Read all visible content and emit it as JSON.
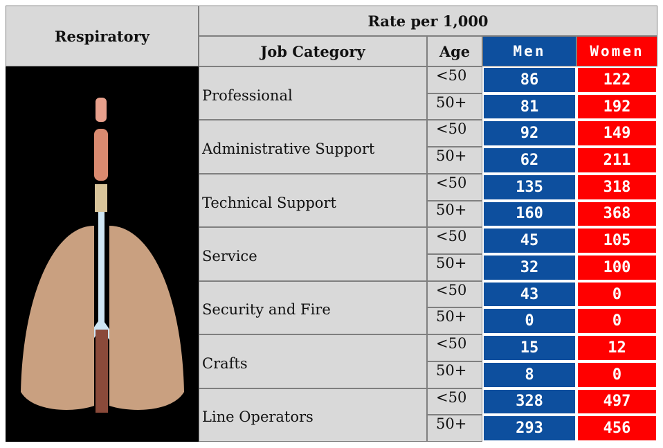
{
  "header": {
    "title": "Respiratory",
    "group": "Rate per 1,000",
    "columns": [
      "Job Category",
      "Age",
      "Men",
      "Women"
    ]
  },
  "table": {
    "rows": [
      {
        "category": "Professional",
        "ages": [
          {
            "age": "<50",
            "men": 86,
            "women": 122
          },
          {
            "age": "50+",
            "men": 81,
            "women": 192
          }
        ]
      },
      {
        "category": "Administrative Support",
        "ages": [
          {
            "age": "<50",
            "men": 92,
            "women": 149
          },
          {
            "age": "50+",
            "men": 62,
            "women": 211
          }
        ]
      },
      {
        "category": "Technical Support",
        "ages": [
          {
            "age": "<50",
            "men": 135,
            "women": 318
          },
          {
            "age": "50+",
            "men": 160,
            "women": 368
          }
        ]
      },
      {
        "category": "Service",
        "ages": [
          {
            "age": "<50",
            "men": 45,
            "women": 105
          },
          {
            "age": "50+",
            "men": 32,
            "women": 100
          }
        ]
      },
      {
        "category": "Security and Fire",
        "ages": [
          {
            "age": "<50",
            "men": 43,
            "women": 0
          },
          {
            "age": "50+",
            "men": 0,
            "women": 0
          }
        ]
      },
      {
        "category": "Crafts",
        "ages": [
          {
            "age": "<50",
            "men": 15,
            "women": 12
          },
          {
            "age": "50+",
            "men": 8,
            "women": 0
          }
        ]
      },
      {
        "category": "Line Operators",
        "ages": [
          {
            "age": "<50",
            "men": 328,
            "women": 497
          },
          {
            "age": "50+",
            "men": 293,
            "women": 456
          }
        ]
      }
    ]
  }
}
